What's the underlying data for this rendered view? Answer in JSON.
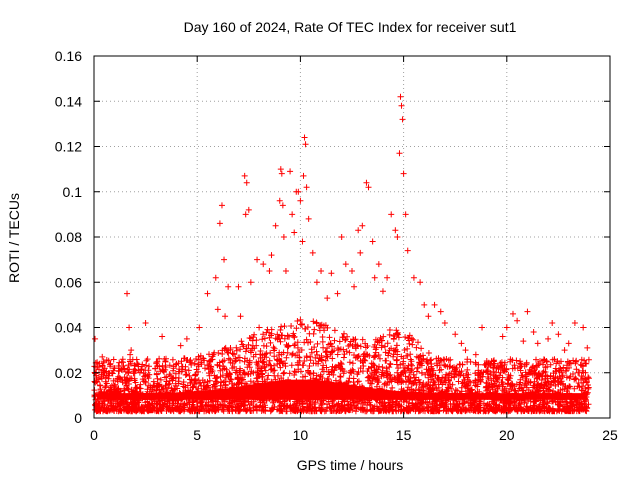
{
  "chart_data": {
    "type": "scatter",
    "title": "Day 160 of 2024, Rate Of TEC Index for receiver sut1",
    "xlabel": "GPS time / hours",
    "ylabel": "ROTI / TECUs",
    "xlim": [
      0,
      25
    ],
    "ylim": [
      0,
      0.16
    ],
    "xticks": [
      0,
      5,
      10,
      15,
      20,
      25
    ],
    "xtick_labels": [
      "0",
      "5",
      "10",
      "15",
      "20",
      "25"
    ],
    "yticks": [
      0,
      0.02,
      0.04,
      0.06,
      0.08,
      0.1,
      0.12,
      0.14,
      0.16
    ],
    "ytick_labels": [
      "0",
      "0.02",
      "0.04",
      "0.06",
      "0.08",
      "0.1",
      "0.12",
      "0.14",
      "0.16"
    ],
    "grid": true,
    "marker": "+",
    "color": "#ff0000",
    "series": [
      {
        "name": "sut1",
        "x": [
          0.05,
          0.1,
          0.15,
          0.4,
          0.8,
          1.0,
          1.6,
          1.7,
          1.75,
          1.8,
          2.5,
          3.3,
          4.2,
          4.5,
          5.1,
          5.5,
          5.9,
          6.0,
          6.1,
          6.2,
          6.3,
          6.35,
          6.5,
          7.0,
          7.1,
          7.3,
          7.35,
          7.4,
          7.5,
          7.6,
          7.9,
          8.0,
          8.2,
          8.5,
          8.6,
          8.8,
          9.0,
          9.05,
          9.1,
          9.15,
          9.2,
          9.3,
          9.5,
          9.6,
          9.7,
          9.8,
          9.9,
          10.0,
          10.1,
          10.15,
          10.2,
          10.25,
          10.3,
          10.4,
          10.6,
          10.8,
          11.0,
          11.3,
          11.5,
          11.8,
          12.0,
          12.2,
          12.5,
          12.6,
          12.8,
          12.9,
          13.0,
          13.2,
          13.3,
          13.5,
          13.6,
          13.8,
          14.0,
          14.2,
          14.4,
          14.6,
          14.7,
          14.8,
          14.85,
          14.9,
          14.95,
          15.0,
          15.1,
          15.2,
          15.5,
          15.8,
          16.0,
          16.2,
          16.5,
          16.8,
          17.0,
          17.5,
          17.8,
          18.0,
          18.5,
          18.8,
          19.0,
          19.5,
          19.8,
          20.0,
          20.3,
          20.5,
          20.8,
          21.0,
          21.3,
          21.5,
          22.0,
          22.2,
          22.5,
          22.8,
          23.0,
          23.3,
          23.7,
          23.9
        ],
        "y": [
          0.035,
          0.02,
          0.016,
          0.027,
          0.024,
          0.022,
          0.055,
          0.04,
          0.028,
          0.03,
          0.042,
          0.036,
          0.032,
          0.035,
          0.04,
          0.055,
          0.062,
          0.048,
          0.086,
          0.094,
          0.07,
          0.045,
          0.058,
          0.058,
          0.045,
          0.107,
          0.09,
          0.104,
          0.092,
          0.06,
          0.07,
          0.04,
          0.068,
          0.065,
          0.072,
          0.085,
          0.096,
          0.11,
          0.108,
          0.094,
          0.08,
          0.065,
          0.109,
          0.09,
          0.082,
          0.1,
          0.1,
          0.096,
          0.078,
          0.107,
          0.124,
          0.121,
          0.102,
          0.088,
          0.073,
          0.06,
          0.065,
          0.053,
          0.064,
          0.055,
          0.08,
          0.068,
          0.065,
          0.058,
          0.083,
          0.073,
          0.085,
          0.104,
          0.102,
          0.078,
          0.062,
          0.068,
          0.056,
          0.062,
          0.09,
          0.083,
          0.08,
          0.117,
          0.142,
          0.138,
          0.132,
          0.108,
          0.09,
          0.074,
          0.062,
          0.06,
          0.05,
          0.045,
          0.05,
          0.047,
          0.042,
          0.037,
          0.033,
          0.03,
          0.028,
          0.04,
          0.024,
          0.022,
          0.036,
          0.04,
          0.046,
          0.043,
          0.034,
          0.047,
          0.038,
          0.033,
          0.035,
          0.042,
          0.037,
          0.03,
          0.033,
          0.042,
          0.04,
          0.031
        ]
      }
    ]
  }
}
